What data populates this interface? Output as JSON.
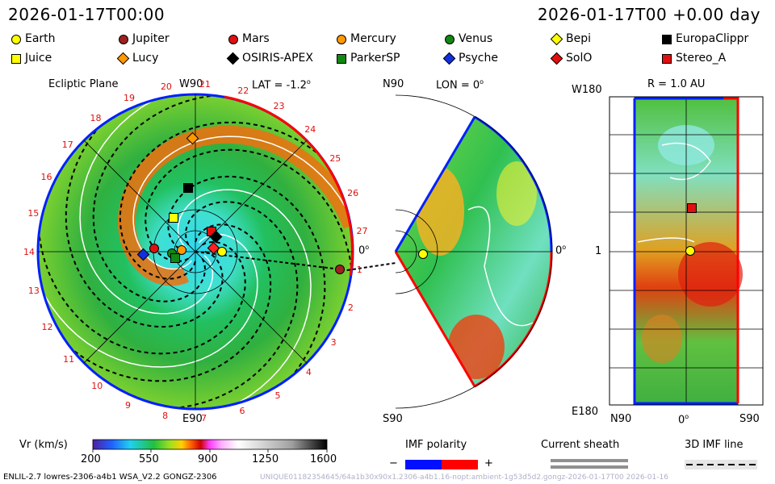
{
  "header": {
    "date_left": "2026-01-17T00:00",
    "date_right": "2026-01-17T00 +0.00 day"
  },
  "legend": [
    {
      "name": "Earth",
      "shape": "circle",
      "color": "#ffff00"
    },
    {
      "name": "Jupiter",
      "shape": "circle",
      "color": "#a02020"
    },
    {
      "name": "Mars",
      "shape": "circle",
      "color": "#e01010"
    },
    {
      "name": "Mercury",
      "shape": "circle",
      "color": "#ff9900"
    },
    {
      "name": "Venus",
      "shape": "circle",
      "color": "#118811"
    },
    {
      "name": "Bepi",
      "shape": "diamond",
      "color": "#ffff00"
    },
    {
      "name": "EuropaClippr",
      "shape": "square",
      "color": "#000000"
    },
    {
      "name": "Juice",
      "shape": "square",
      "color": "#ffff00"
    },
    {
      "name": "Lucy",
      "shape": "diamond",
      "color": "#ff9900"
    },
    {
      "name": "OSIRIS-APEX",
      "shape": "diamond",
      "color": "#000000"
    },
    {
      "name": "ParkerSP",
      "shape": "square",
      "color": "#118811"
    },
    {
      "name": "Psyche",
      "shape": "diamond",
      "color": "#1030e0"
    },
    {
      "name": "SolO",
      "shape": "diamond",
      "color": "#e01010"
    },
    {
      "name": "Stereo_A",
      "shape": "square",
      "color": "#e01010"
    }
  ],
  "panels": {
    "ecliptic": {
      "title": "Ecliptic Plane",
      "top": "W90",
      "bottom": "E90",
      "lat": "LAT = -1.2",
      "right": "0"
    },
    "meridional": {
      "top": "N90",
      "lon": "LON = 0",
      "bottom": "S90",
      "right": "0"
    },
    "radial": {
      "title": "R = 1.0 AU",
      "top_left": "W180",
      "bottom_left": "E180",
      "mid_left": "1",
      "x_left": "N90",
      "x_mid": "0",
      "x_right": "S90"
    }
  },
  "degree_mark": "o",
  "carrington_ticks": [
    "20",
    "21",
    "22",
    "23",
    "24",
    "25",
    "26",
    "27",
    "1",
    "2",
    "3",
    "4",
    "5",
    "6",
    "7",
    "8",
    "9",
    "10",
    "11",
    "12",
    "13",
    "14",
    "15",
    "16",
    "17",
    "18",
    "19"
  ],
  "colorbar": {
    "label": "Vr (km/s)",
    "ticks": [
      "200",
      "550",
      "900",
      "1250",
      "1600"
    ]
  },
  "imf": {
    "label": "IMF polarity",
    "minus": "−",
    "plus": "+",
    "neg_color": "#0010ff",
    "pos_color": "#ff0000"
  },
  "sheath": {
    "label": "Current sheath"
  },
  "imfline": {
    "label": "3D IMF line"
  },
  "footer": {
    "left": "ENLIL-2.7 lowres-2306-a4b1 WSA_V2.2 GONGZ-2306",
    "right": "UNIQUE01182354645/64a1b30x90x1.2306-a4b1.16-nopt:ambient-1g53d5d2.gongz-2026-01-17T00   2026-01-16"
  },
  "chart_data": {
    "type": "heatmap",
    "quantity": "Radial solar wind speed Vr",
    "units": "km/s",
    "range": [
      200,
      1600
    ],
    "time": "2026-01-17T00:00",
    "views": [
      "Ecliptic Plane",
      "Meridional plane LON = 0",
      "R = 1.0 AU"
    ]
  }
}
